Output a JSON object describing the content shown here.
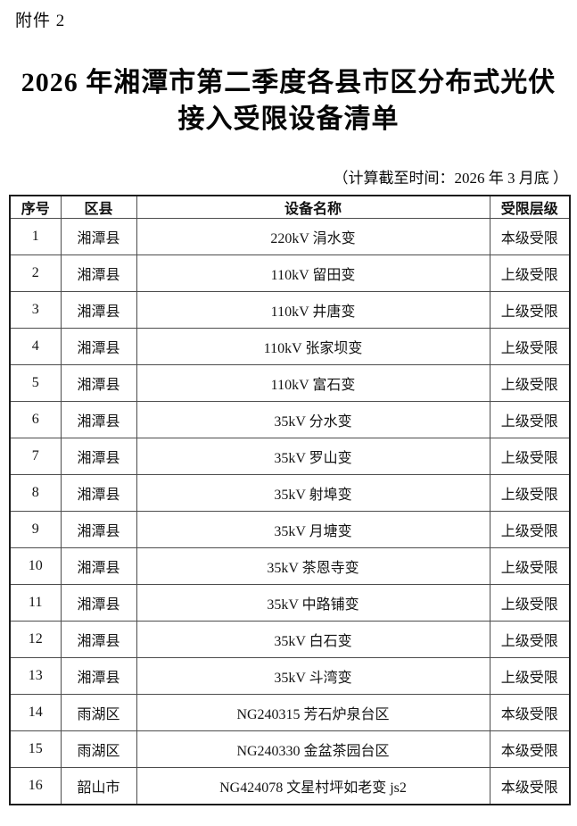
{
  "page": {
    "attachment_label": "附件 2",
    "title_line1": "2026 年湘潭市第二季度各县市区分布式光伏",
    "title_line2": "接入受限设备清单",
    "note": "（计算截至时间：2026 年 3 月底 ）"
  },
  "table": {
    "headers": [
      "序号",
      "区县",
      "设备名称",
      "受限层级"
    ],
    "rows": [
      [
        "1",
        "湘潭县",
        "220kV 涓水变",
        "本级受限"
      ],
      [
        "2",
        "湘潭县",
        "110kV 留田变",
        "上级受限"
      ],
      [
        "3",
        "湘潭县",
        "110kV 井唐变",
        "上级受限"
      ],
      [
        "4",
        "湘潭县",
        "110kV 张家坝变",
        "上级受限"
      ],
      [
        "5",
        "湘潭县",
        "110kV 富石变",
        "上级受限"
      ],
      [
        "6",
        "湘潭县",
        "35kV 分水变",
        "上级受限"
      ],
      [
        "7",
        "湘潭县",
        "35kV 罗山变",
        "上级受限"
      ],
      [
        "8",
        "湘潭县",
        "35kV 射埠变",
        "上级受限"
      ],
      [
        "9",
        "湘潭县",
        "35kV 月塘变",
        "上级受限"
      ],
      [
        "10",
        "湘潭县",
        "35kV 茶恩寺变",
        "上级受限"
      ],
      [
        "11",
        "湘潭县",
        "35kV 中路铺变",
        "上级受限"
      ],
      [
        "12",
        "湘潭县",
        "35kV 白石变",
        "上级受限"
      ],
      [
        "13",
        "湘潭县",
        "35kV 斗湾变",
        "上级受限"
      ],
      [
        "14",
        "雨湖区",
        "NG240315 芳石炉泉台区",
        "本级受限"
      ],
      [
        "15",
        "雨湖区",
        "NG240330 金盆茶园台区",
        "本级受限"
      ],
      [
        "16",
        "韶山市",
        "NG424078 文星村坪如老变 js2",
        "本级受限"
      ]
    ]
  }
}
